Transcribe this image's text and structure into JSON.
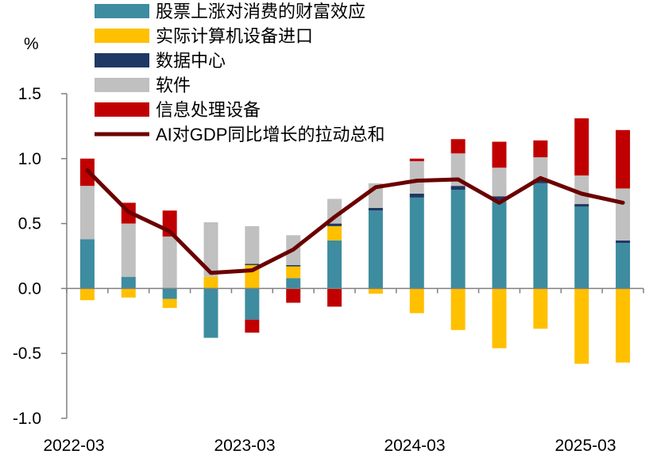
{
  "chart_data": {
    "type": "bar",
    "stacked": true,
    "unit": "%",
    "ylim": [
      -1.0,
      1.5
    ],
    "yticks": [
      "1.5",
      "1.0",
      "0.5",
      "0.0",
      "-0.5",
      "-1.0"
    ],
    "x": [
      "2022-03",
      "2022-06",
      "2022-09",
      "2022-12",
      "2023-03",
      "2023-06",
      "2023-09",
      "2023-12",
      "2024-03",
      "2024-06",
      "2024-09",
      "2024-12",
      "2025-03",
      "2025-06"
    ],
    "xtick_labels": [
      "2022-03",
      "2023-03",
      "2024-03",
      "2025-03"
    ],
    "series": [
      {
        "name": "股票上涨对消费的财富效应",
        "color": "#3d8ca0",
        "values": [
          0.38,
          0.09,
          -0.08,
          -0.38,
          -0.24,
          0.08,
          0.37,
          0.6,
          0.7,
          0.76,
          0.68,
          0.81,
          0.63,
          0.35
        ]
      },
      {
        "name": "实际计算机设备进口",
        "color": "#ffc000",
        "values": [
          -0.09,
          -0.07,
          -0.07,
          0.09,
          0.18,
          0.09,
          0.11,
          -0.04,
          -0.19,
          -0.32,
          -0.46,
          -0.31,
          -0.58,
          -0.57
        ]
      },
      {
        "name": "数据中心",
        "color": "#1f3864",
        "values": [
          0.0,
          0.0,
          0.0,
          0.0,
          0.01,
          0.01,
          0.02,
          0.02,
          0.03,
          0.03,
          0.03,
          0.03,
          0.02,
          0.02
        ]
      },
      {
        "name": "软件",
        "color": "#c0c0c0",
        "values": [
          0.41,
          0.41,
          0.4,
          0.42,
          0.29,
          0.23,
          0.19,
          0.19,
          0.25,
          0.25,
          0.22,
          0.17,
          0.22,
          0.4
        ]
      },
      {
        "name": "信息处理设备",
        "color": "#c00000",
        "values": [
          0.21,
          0.16,
          0.2,
          0.0,
          -0.1,
          -0.11,
          -0.14,
          0.0,
          0.02,
          0.11,
          0.2,
          0.13,
          0.44,
          0.45
        ]
      }
    ],
    "line": {
      "name": "AI对GDP同比增长的拉动总和",
      "color": "#6b0000",
      "values": [
        0.91,
        0.59,
        0.44,
        0.12,
        0.14,
        0.3,
        0.55,
        0.78,
        0.83,
        0.84,
        0.66,
        0.85,
        0.73,
        0.66
      ]
    },
    "legend_placement": "top",
    "grid": false
  }
}
